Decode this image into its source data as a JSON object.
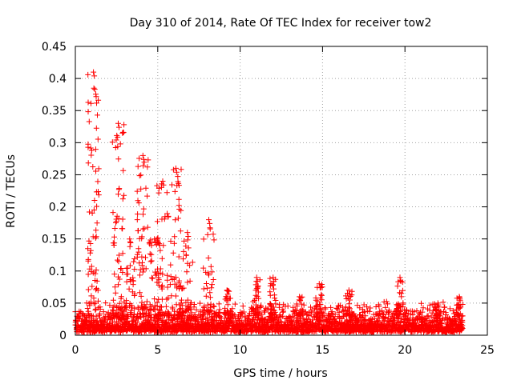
{
  "chart_data": {
    "type": "scatter",
    "title": "Day 310 of 2014, Rate Of TEC Index for receiver tow2",
    "xlabel": "GPS time / hours",
    "ylabel": "ROTI / TECUs",
    "xlim": [
      0,
      25
    ],
    "ylim": [
      0,
      0.45
    ],
    "xticks": [
      0,
      5,
      10,
      15,
      20,
      25
    ],
    "yticks": [
      0,
      0.05,
      0.1,
      0.15,
      0.2,
      0.25,
      0.3,
      0.35,
      0.4,
      0.45
    ],
    "grid": true,
    "marker": "+",
    "series": [
      {
        "name": "ROTI",
        "color": "#ff0000",
        "baseline_band": {
          "x_range": [
            0,
            23.5
          ],
          "typical_min": 0.005,
          "typical_max": 0.04
        },
        "spike_clusters": [
          {
            "x": 1.1,
            "y_max": 0.41
          },
          {
            "x": 2.6,
            "y_max": 0.33
          },
          {
            "x": 3.3,
            "y_max": 0.15
          },
          {
            "x": 4.1,
            "y_max": 0.28
          },
          {
            "x": 4.8,
            "y_max": 0.15
          },
          {
            "x": 5.3,
            "y_max": 0.24
          },
          {
            "x": 6.1,
            "y_max": 0.26
          },
          {
            "x": 6.8,
            "y_max": 0.16
          },
          {
            "x": 8.1,
            "y_max": 0.18
          },
          {
            "x": 9.2,
            "y_max": 0.07
          },
          {
            "x": 11.0,
            "y_max": 0.09
          },
          {
            "x": 12.0,
            "y_max": 0.09
          },
          {
            "x": 13.6,
            "y_max": 0.06
          },
          {
            "x": 14.8,
            "y_max": 0.08
          },
          {
            "x": 16.6,
            "y_max": 0.07
          },
          {
            "x": 19.7,
            "y_max": 0.09
          },
          {
            "x": 22.0,
            "y_max": 0.05
          },
          {
            "x": 23.3,
            "y_max": 0.06
          }
        ]
      }
    ]
  }
}
